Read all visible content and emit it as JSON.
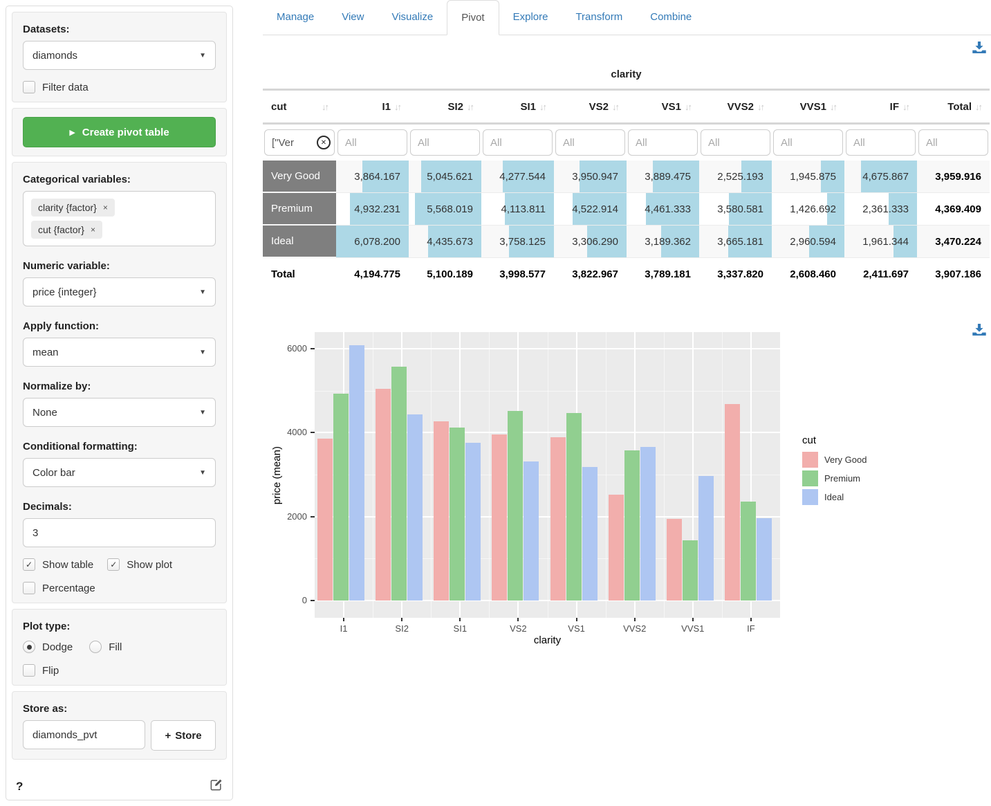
{
  "sidebar": {
    "datasets_label": "Datasets:",
    "dataset_value": "diamonds",
    "filter_data_label": "Filter data",
    "filter_data_checked": false,
    "create_button_label": "Create pivot table",
    "categorical_label": "Categorical variables:",
    "categorical_tags": [
      "clarity {factor}",
      "cut {factor}"
    ],
    "numeric_label": "Numeric variable:",
    "numeric_value": "price {integer}",
    "apply_label": "Apply function:",
    "apply_value": "mean",
    "normalize_label": "Normalize by:",
    "normalize_value": "None",
    "cond_format_label": "Conditional formatting:",
    "cond_format_value": "Color bar",
    "decimals_label": "Decimals:",
    "decimals_value": "3",
    "show_table_label": "Show table",
    "show_table_checked": true,
    "show_plot_label": "Show plot",
    "show_plot_checked": true,
    "percentage_label": "Percentage",
    "percentage_checked": false,
    "plot_type_label": "Plot type:",
    "plot_dodge_label": "Dodge",
    "plot_dodge_selected": true,
    "plot_fill_label": "Fill",
    "plot_fill_selected": false,
    "flip_label": "Flip",
    "flip_checked": false,
    "store_label": "Store as:",
    "store_value": "diamonds_pvt",
    "store_button_label": "Store",
    "help_label": "?"
  },
  "tabs": {
    "items": [
      "Manage",
      "View",
      "Visualize",
      "Pivot",
      "Explore",
      "Transform",
      "Combine"
    ],
    "active": "Pivot"
  },
  "pivot": {
    "group_title": "clarity",
    "row_header": "cut",
    "columns": [
      "I1",
      "SI2",
      "SI1",
      "VS2",
      "VS1",
      "VVS2",
      "VVS1",
      "IF",
      "Total"
    ],
    "filter_value": "[\"Ver",
    "filter_placeholder": "All",
    "rows": [
      {
        "label": "Very Good",
        "values": [
          "3,864.167",
          "5,045.621",
          "4,277.544",
          "3,950.947",
          "3,889.475",
          "2,525.193",
          "1,945.875",
          "4,675.867"
        ],
        "total": "3,959.916"
      },
      {
        "label": "Premium",
        "values": [
          "4,932.231",
          "5,568.019",
          "4,113.811",
          "4,522.914",
          "4,461.333",
          "3,580.581",
          "1,426.692",
          "2,361.333"
        ],
        "total": "4,369.409"
      },
      {
        "label": "Ideal",
        "values": [
          "6,078.200",
          "4,435.673",
          "3,758.125",
          "3,306.290",
          "3,189.362",
          "3,665.181",
          "2,960.594",
          "1,961.344"
        ],
        "total": "3,470.224"
      }
    ],
    "total_row": {
      "label": "Total",
      "values": [
        "4,194.775",
        "5,100.189",
        "3,998.577",
        "3,822.967",
        "3,789.181",
        "3,337.820",
        "2,608.460",
        "2,411.697"
      ],
      "total": "3,907.186"
    },
    "colorbar": {
      "color": "#add8e6",
      "max": 6078.2
    }
  },
  "chart_data": {
    "type": "bar",
    "categories": [
      "I1",
      "SI2",
      "SI1",
      "VS2",
      "VS1",
      "VVS2",
      "VVS1",
      "IF"
    ],
    "series": [
      {
        "name": "Very Good",
        "color": "#F2AEAC",
        "values": [
          3864.167,
          5045.621,
          4277.544,
          3950.947,
          3889.475,
          2525.193,
          1945.875,
          4675.867
        ]
      },
      {
        "name": "Premium",
        "color": "#91CF90",
        "values": [
          4932.231,
          5568.019,
          4113.811,
          4522.914,
          4461.333,
          3580.581,
          1426.692,
          2361.333
        ]
      },
      {
        "name": "Ideal",
        "color": "#AEC6F2",
        "values": [
          6078.2,
          4435.673,
          3758.125,
          3306.29,
          3189.362,
          3665.181,
          2960.594,
          1961.344
        ]
      }
    ],
    "title": "",
    "xlabel": "clarity",
    "ylabel": "price (mean)",
    "y_ticks": [
      0,
      2000,
      4000,
      6000
    ],
    "ylim": [
      -400,
      6400
    ],
    "legend_title": "cut",
    "legend_position": "right",
    "grid": true,
    "plot_bg": "#EBEBEB"
  },
  "colors": {
    "link_blue": "#337ab7",
    "button_green": "#52b152",
    "row_header_gray": "#7f7f7f",
    "colorbar_blue": "#add8e6",
    "plot_background": "#EBEBEB"
  }
}
